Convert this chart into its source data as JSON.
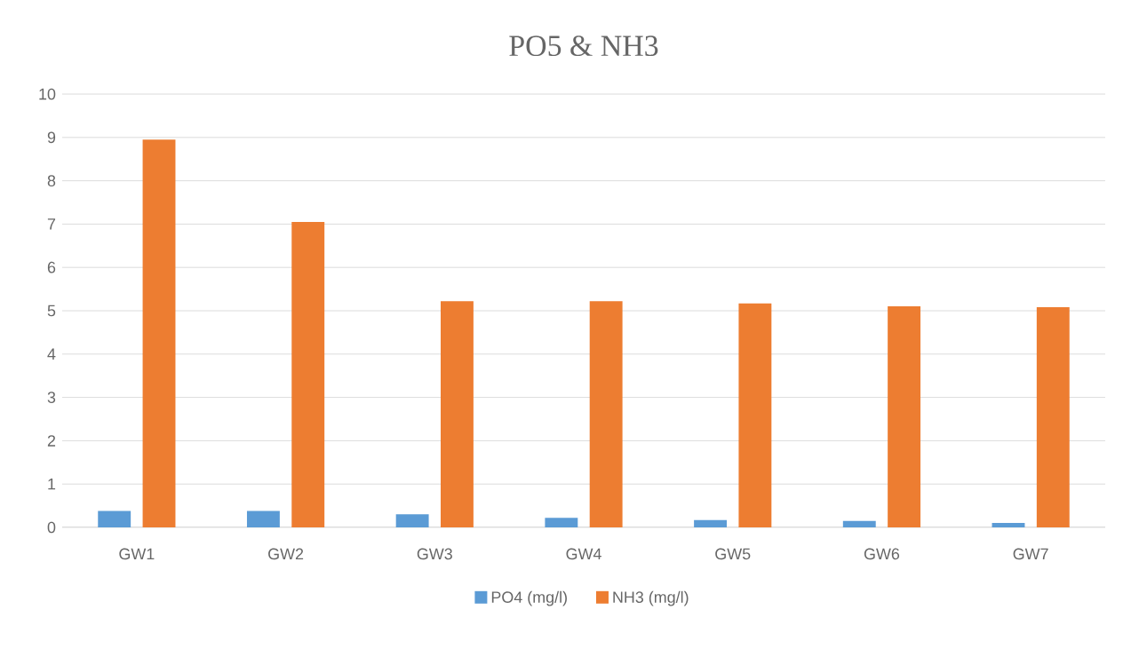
{
  "chart_data": {
    "type": "bar",
    "title": "PO5 & NH3",
    "categories": [
      "GW1",
      "GW2",
      "GW3",
      "GW4",
      "GW5",
      "GW6",
      "GW7"
    ],
    "series": [
      {
        "name": "PO4 (mg/l)",
        "color": "#5b9bd5",
        "values": [
          0.38,
          0.38,
          0.3,
          0.22,
          0.17,
          0.15,
          0.1
        ]
      },
      {
        "name": "NH3 (mg/l)",
        "color": "#ed7d31",
        "values": [
          8.95,
          7.05,
          5.22,
          5.22,
          5.17,
          5.1,
          5.08
        ]
      }
    ],
    "ylim": [
      0,
      10
    ],
    "yticks": [
      0,
      1,
      2,
      3,
      4,
      5,
      6,
      7,
      8,
      9,
      10
    ],
    "grid": "y",
    "legend": "bottom"
  }
}
